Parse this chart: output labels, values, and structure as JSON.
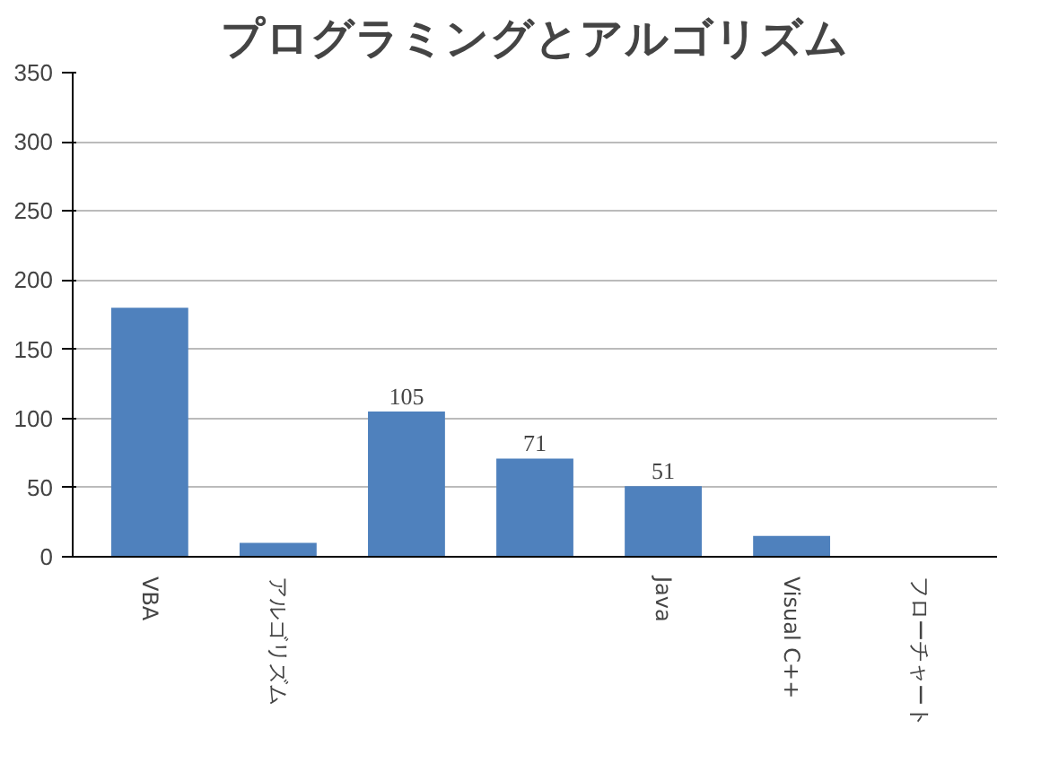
{
  "chart_data": {
    "type": "bar",
    "title": "プログラミングとアルゴリズム",
    "categories": [
      "VBA",
      "アルゴリズム",
      null,
      null,
      "Java",
      "Visual C++",
      "フローチャート"
    ],
    "values": [
      180,
      10,
      105,
      71,
      51,
      15,
      null
    ],
    "value_labels": [
      null,
      null,
      "105",
      "71",
      "51",
      null,
      null
    ],
    "color": "#4f81bd",
    "ylim": [
      0,
      350
    ],
    "yticks": [
      0,
      50,
      100,
      150,
      200,
      250,
      300,
      350
    ],
    "grid": "y"
  }
}
